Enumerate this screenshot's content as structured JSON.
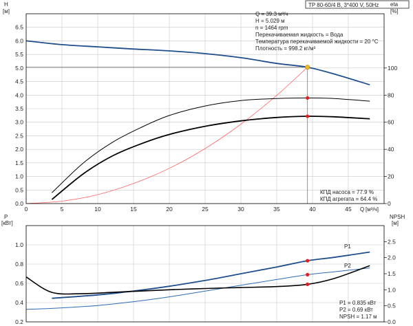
{
  "header": {
    "pump_model": "TP 80-60/4 B, 3*400 V, 50Hz"
  },
  "info_top": {
    "q": "Q = 39.3 м³/ч",
    "h": "H = 5.029 м",
    "n": "n = 1464 rpm",
    "liquid": "Перекачиваемая жидкость = Вода",
    "temp": "Температура перекачиваемой жидкости = 20 °C",
    "density": "Плотность = 998.2 кг/м³"
  },
  "eff_labels": {
    "pump": "КПД насоса = 77.9 %",
    "unit": "КПД агрегата = 64.4 %"
  },
  "info_bottom": {
    "p1": "P1 = 0.835 кВт",
    "p2": "P2 = 0.69 кВт",
    "npsh": "NPSH = 1.17 м"
  },
  "axes": {
    "h_letter": "H",
    "h_unit": "[м]",
    "eta_letter": "eta",
    "eta_unit": "[%]",
    "q_letter": "Q",
    "q_unit": "[м³/ч]",
    "p_letter": "P",
    "p_unit": "[кВт]",
    "npsh_letter": "NPSH",
    "npsh_unit": "[м]"
  },
  "colors": {
    "head": "#1f4e8c",
    "p1": "#1f4e8c",
    "p2": "#2e6ab5",
    "npsh": "#000000",
    "system": "#ff6666",
    "eta_pump": "#000000",
    "eta_unit": "#000000",
    "marker": "#e02020",
    "op_marker": "#f2b824"
  },
  "chart_data": [
    {
      "type": "line",
      "title": "",
      "xlabel": "Q [м³/ч]",
      "ylabel": "H [м]",
      "y2label": "eta [%]",
      "xlim": [
        0,
        50
      ],
      "ylim": [
        0,
        7
      ],
      "y2lim": [
        0,
        140
      ],
      "x_ticks": [
        0,
        5,
        10,
        15,
        20,
        25,
        30,
        35,
        40,
        45
      ],
      "y_ticks": [
        0.0,
        0.5,
        1.0,
        1.5,
        2.0,
        2.5,
        3.0,
        3.5,
        4.0,
        4.5,
        5.0,
        5.5,
        6.0,
        6.5
      ],
      "y2_ticks": [
        0,
        20,
        40,
        60,
        80,
        100
      ],
      "grid": true,
      "operating_point": {
        "x": 39.3,
        "y": 5.029
      },
      "series": [
        {
          "id": "head",
          "axis": "left",
          "x": [
            0,
            5,
            10,
            15,
            20,
            25,
            30,
            35,
            39.3,
            43,
            48
          ],
          "y": [
            6.0,
            5.86,
            5.78,
            5.7,
            5.63,
            5.53,
            5.38,
            5.17,
            5.029,
            4.78,
            4.38
          ]
        },
        {
          "id": "system",
          "axis": "left",
          "x": [
            0,
            5,
            10,
            15,
            20,
            25,
            30,
            35,
            39.3
          ],
          "y": [
            0,
            0.09,
            0.33,
            0.74,
            1.3,
            2.03,
            2.93,
            3.99,
            5.029
          ]
        },
        {
          "id": "eta_pump",
          "axis": "right",
          "x": [
            3.6,
            8,
            12,
            16,
            20,
            25,
            30,
            35,
            39.3,
            43,
            48
          ],
          "y": [
            8,
            30,
            45,
            56,
            65,
            72,
            76,
            77.5,
            77.9,
            77.5,
            75.5
          ]
        },
        {
          "id": "eta_unit",
          "axis": "right",
          "x": [
            3.6,
            8,
            12,
            16,
            20,
            25,
            30,
            35,
            39.3,
            43,
            48
          ],
          "y": [
            3,
            22,
            35,
            44,
            51,
            57,
            61,
            63.5,
            64.4,
            64.0,
            62.5
          ]
        }
      ]
    },
    {
      "type": "line",
      "title": "",
      "xlabel": "Q [м³/ч]",
      "ylabel": "P [кВт]",
      "y2label": "NPSH [м]",
      "xlim": [
        0,
        50
      ],
      "ylim": [
        0.2,
        1.2
      ],
      "y2lim": [
        0,
        3
      ],
      "y_ticks": [
        0.2,
        0.4,
        0.6,
        0.8,
        1.0
      ],
      "y2_ticks": [
        0,
        0.5,
        1.0,
        1.5,
        2.0,
        2.5
      ],
      "grid": true,
      "series": [
        {
          "id": "p1",
          "name": "P1",
          "axis": "left",
          "x": [
            3.6,
            10,
            15,
            20,
            25,
            30,
            35,
            39.3,
            43,
            48
          ],
          "y": [
            0.445,
            0.48,
            0.52,
            0.57,
            0.63,
            0.7,
            0.77,
            0.835,
            0.87,
            0.925
          ]
        },
        {
          "id": "p2",
          "name": "P2",
          "axis": "left",
          "x": [
            0,
            3.6,
            10,
            15,
            20,
            25,
            30,
            35,
            39.3,
            43,
            48
          ],
          "y": [
            0.33,
            0.34,
            0.37,
            0.41,
            0.46,
            0.52,
            0.58,
            0.64,
            0.69,
            0.72,
            0.76
          ]
        },
        {
          "id": "npsh",
          "name": "NPSH",
          "axis": "right",
          "x": [
            0,
            3.6,
            8,
            12,
            16,
            20,
            25,
            30,
            35,
            39.3,
            43,
            48
          ],
          "y": [
            1.4,
            0.92,
            0.88,
            0.92,
            0.96,
            1.0,
            1.04,
            1.07,
            1.1,
            1.17,
            1.35,
            1.75
          ]
        }
      ],
      "markers": [
        {
          "series": "p1",
          "x": 39.3,
          "y": 0.835
        },
        {
          "series": "p2",
          "x": 39.3,
          "y": 0.69
        },
        {
          "series": "npsh",
          "x": 39.3,
          "y": 1.17
        }
      ]
    }
  ]
}
